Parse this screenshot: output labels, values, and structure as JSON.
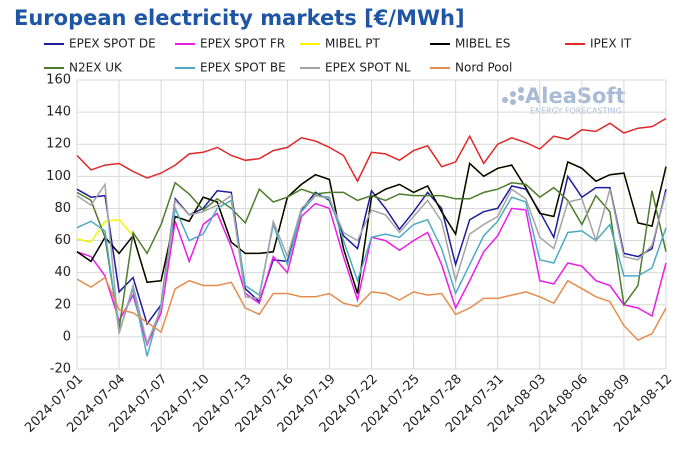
{
  "chart_data": {
    "type": "line",
    "title": "European electricity markets [€/MWh]",
    "logo": {
      "name": "AleaSoft",
      "tagline": "ENERGY FORECASTING"
    },
    "legend": "top",
    "grid": true,
    "x": [
      "2024-07-01",
      "2024-07-02",
      "2024-07-03",
      "2024-07-04",
      "2024-07-05",
      "2024-07-06",
      "2024-07-07",
      "2024-07-08",
      "2024-07-09",
      "2024-07-10",
      "2024-07-11",
      "2024-07-12",
      "2024-07-13",
      "2024-07-14",
      "2024-07-15",
      "2024-07-16",
      "2024-07-17",
      "2024-07-18",
      "2024-07-19",
      "2024-07-20",
      "2024-07-21",
      "2024-07-22",
      "2024-07-23",
      "2024-07-24",
      "2024-07-25",
      "2024-07-26",
      "2024-07-27",
      "2024-07-28",
      "2024-07-29",
      "2024-07-30",
      "2024-07-31",
      "2024-08-01",
      "2024-08-02",
      "2024-08-03",
      "2024-08-04",
      "2024-08-05",
      "2024-08-06",
      "2024-08-07",
      "2024-08-08",
      "2024-08-09",
      "2024-08-10",
      "2024-08-11",
      "2024-08-12"
    ],
    "xlim": [
      "2024-07-01",
      "2024-08-12"
    ],
    "xticks": [
      "2024-07-01",
      "2024-07-04",
      "2024-07-07",
      "2024-07-10",
      "2024-07-13",
      "2024-07-16",
      "2024-07-19",
      "2024-07-22",
      "2024-07-25",
      "2024-07-28",
      "2024-07-31",
      "2024-08-03",
      "2024-08-06",
      "2024-08-09",
      "2024-08-12"
    ],
    "ylim": [
      -20,
      160
    ],
    "yticks": [
      -20,
      0,
      20,
      40,
      60,
      80,
      100,
      120,
      140,
      160
    ],
    "series": [
      {
        "name": "EPEX SPOT DE",
        "color": "#1c1c9c",
        "values": [
          92,
          87,
          88,
          28,
          37,
          8,
          20,
          86,
          76,
          80,
          91,
          90,
          30,
          22,
          48,
          47,
          79,
          90,
          85,
          63,
          55,
          91,
          80,
          67,
          78,
          90,
          80,
          45,
          73,
          78,
          80,
          94,
          92,
          78,
          62,
          100,
          87,
          93,
          93,
          52,
          50,
          55,
          92
        ]
      },
      {
        "name": "EPEX SPOT FR",
        "color": "#e81ee8",
        "values": [
          53,
          50,
          38,
          10,
          26,
          -5,
          15,
          72,
          47,
          70,
          77,
          56,
          27,
          21,
          50,
          40,
          75,
          83,
          80,
          50,
          23,
          62,
          60,
          54,
          60,
          65,
          45,
          18,
          35,
          53,
          63,
          80,
          79,
          35,
          33,
          46,
          44,
          35,
          32,
          20,
          18,
          13,
          46
        ]
      },
      {
        "name": "MIBEL PT",
        "color": "#f5f500",
        "values": [
          61,
          59,
          72,
          73,
          63,
          34,
          35,
          75,
          72,
          87,
          84,
          59,
          52,
          52,
          53,
          87,
          95,
          101,
          98,
          55,
          27,
          87,
          92,
          95,
          90,
          94,
          78,
          64,
          108,
          100,
          105,
          107,
          93,
          77,
          75,
          109,
          105,
          97,
          101,
          102,
          71,
          69,
          106
        ]
      },
      {
        "name": "MIBEL ES",
        "color": "#000000",
        "values": [
          53,
          47,
          62,
          52,
          63,
          34,
          35,
          75,
          72,
          87,
          84,
          59,
          52,
          52,
          53,
          87,
          95,
          101,
          98,
          55,
          27,
          87,
          92,
          95,
          90,
          94,
          78,
          64,
          108,
          100,
          105,
          107,
          93,
          77,
          75,
          109,
          105,
          97,
          101,
          102,
          71,
          69,
          106
        ]
      },
      {
        "name": "IPEX IT",
        "color": "#e02828",
        "values": [
          113,
          104,
          107,
          108,
          103,
          99,
          102,
          107,
          114,
          115,
          118,
          113,
          110,
          111,
          116,
          118,
          124,
          122,
          118,
          113,
          97,
          115,
          114,
          110,
          116,
          119,
          106,
          109,
          125,
          108,
          120,
          124,
          121,
          117,
          125,
          123,
          129,
          128,
          133,
          127,
          130,
          131,
          136
        ]
      },
      {
        "name": "N2EX UK",
        "color": "#4c7c2c",
        "values": [
          90,
          85,
          62,
          5,
          65,
          52,
          70,
          96,
          89,
          79,
          86,
          80,
          71,
          92,
          84,
          87,
          92,
          89,
          90,
          90,
          85,
          88,
          85,
          89,
          88,
          88,
          88,
          86,
          86,
          90,
          92,
          96,
          95,
          87,
          93,
          85,
          70,
          88,
          78,
          20,
          32,
          91,
          53
        ]
      },
      {
        "name": "EPEX SPOT BE",
        "color": "#4eaac2",
        "values": [
          68,
          72,
          66,
          3,
          30,
          -12,
          20,
          80,
          60,
          64,
          80,
          85,
          32,
          26,
          70,
          45,
          78,
          88,
          87,
          60,
          35,
          62,
          64,
          62,
          70,
          73,
          55,
          27,
          45,
          63,
          72,
          87,
          84,
          48,
          46,
          65,
          66,
          60,
          70,
          38,
          38,
          43,
          68
        ]
      },
      {
        "name": "EPEX SPOT NL",
        "color": "#a4a4a4",
        "values": [
          88,
          82,
          95,
          2,
          32,
          -4,
          18,
          85,
          76,
          78,
          82,
          88,
          25,
          24,
          72,
          50,
          80,
          88,
          86,
          65,
          60,
          79,
          76,
          65,
          75,
          85,
          72,
          35,
          64,
          70,
          75,
          92,
          86,
          62,
          55,
          84,
          86,
          60,
          92,
          50,
          48,
          57,
          90
        ]
      },
      {
        "name": "Nord Pool",
        "color": "#e48c4c",
        "values": [
          36,
          31,
          37,
          17,
          15,
          9,
          3,
          30,
          35,
          32,
          32,
          34,
          18,
          14,
          27,
          27,
          25,
          25,
          27,
          21,
          19,
          28,
          27,
          23,
          28,
          26,
          27,
          14,
          18,
          24,
          24,
          26,
          28,
          25,
          21,
          35,
          30,
          25,
          22,
          7,
          -2,
          2,
          18
        ]
      }
    ]
  }
}
